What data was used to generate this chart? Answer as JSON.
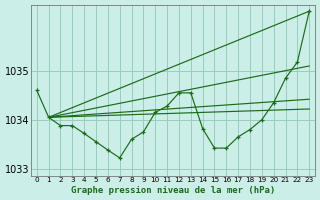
{
  "title": "Graphe pression niveau de la mer (hPa)",
  "background_color": "#cceee8",
  "plot_bg_color": "#cceee8",
  "grid_color": "#99ccbb",
  "line_color": "#1a6b1a",
  "xlim": [
    -0.5,
    23.5
  ],
  "ylim": [
    1032.85,
    1036.35
  ],
  "yticks": [
    1033,
    1034,
    1035
  ],
  "xticks": [
    0,
    1,
    2,
    3,
    4,
    5,
    6,
    7,
    8,
    9,
    10,
    11,
    12,
    13,
    14,
    15,
    16,
    17,
    18,
    19,
    20,
    21,
    22,
    23
  ],
  "main_x": [
    0,
    1,
    2,
    3,
    4,
    5,
    6,
    7,
    8,
    9,
    10,
    11,
    12,
    13,
    14,
    15,
    16,
    17,
    18,
    19,
    20,
    21,
    22,
    23
  ],
  "main_y": [
    1034.6,
    1034.05,
    1033.88,
    1033.88,
    1033.72,
    1033.55,
    1033.38,
    1033.22,
    1033.6,
    1033.75,
    1034.15,
    1034.28,
    1034.55,
    1034.55,
    1033.82,
    1033.42,
    1033.42,
    1033.65,
    1033.8,
    1034.0,
    1034.35,
    1034.85,
    1035.18,
    1036.22
  ],
  "envelope_lines": [
    {
      "x0": 1,
      "y0": 1034.05,
      "x1": 23,
      "y1": 1036.22
    },
    {
      "x0": 1,
      "y0": 1034.05,
      "x1": 23,
      "y1": 1035.1
    },
    {
      "x0": 1,
      "y0": 1034.05,
      "x1": 23,
      "y1": 1034.42
    },
    {
      "x0": 1,
      "y0": 1034.05,
      "x1": 23,
      "y1": 1034.22
    }
  ],
  "xlabel_fontsize": 6.5,
  "ytick_fontsize": 7,
  "xtick_fontsize": 5.2
}
